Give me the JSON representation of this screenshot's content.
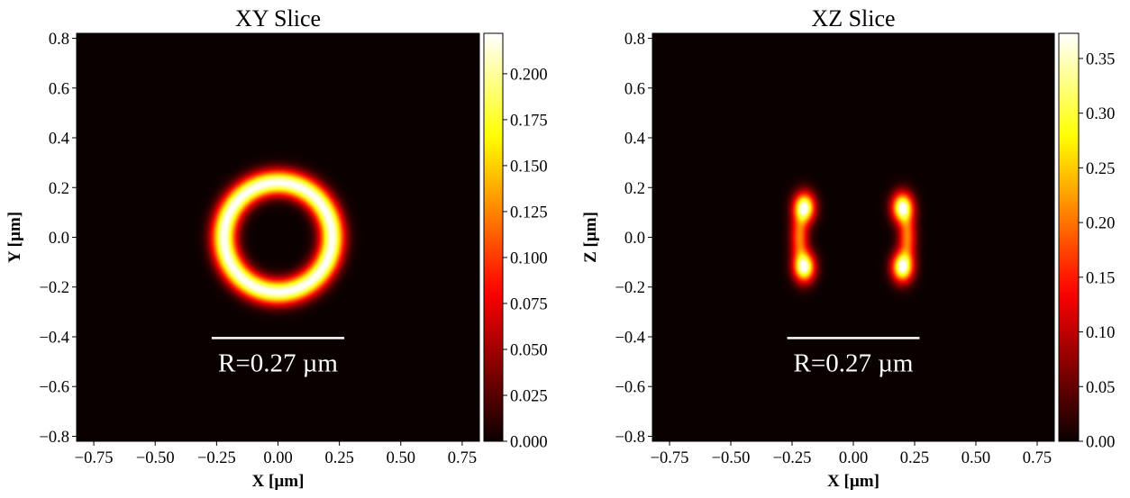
{
  "chart_data": [
    {
      "type": "heatmap",
      "title": "XY Slice",
      "xlabel": "X [µm]",
      "ylabel": "Y [µm]",
      "xlim": [
        -0.82,
        0.82
      ],
      "ylim": [
        -0.82,
        0.82
      ],
      "xticks": [
        "−0.75",
        "−0.50",
        "−0.25",
        "0.00",
        "0.25",
        "0.50",
        "0.75"
      ],
      "xtick_values": [
        -0.75,
        -0.5,
        -0.25,
        0.0,
        0.25,
        0.5,
        0.75
      ],
      "yticks": [
        "−0.8",
        "−0.6",
        "−0.4",
        "−0.2",
        "0.0",
        "0.2",
        "0.4",
        "0.6",
        "0.8"
      ],
      "ytick_values": [
        -0.8,
        -0.6,
        -0.4,
        -0.2,
        0.0,
        0.2,
        0.4,
        0.6,
        0.8
      ],
      "colormap": "hot",
      "colorbar": {
        "vmin": 0.0,
        "vmax": 0.222,
        "ticks": [
          "0.000",
          "0.025",
          "0.050",
          "0.075",
          "0.100",
          "0.125",
          "0.150",
          "0.175",
          "0.200"
        ],
        "tick_values": [
          0.0,
          0.025,
          0.05,
          0.075,
          0.1,
          0.125,
          0.15,
          0.175,
          0.2
        ]
      },
      "feature": {
        "shape": "ring",
        "center": [
          0.0,
          0.0
        ],
        "ring_radius": 0.22,
        "ring_width": 0.05,
        "peak": 0.222
      },
      "scale_bar": {
        "x": [
          -0.27,
          0.27
        ],
        "y": -0.405,
        "label": "R=0.27 µm"
      }
    },
    {
      "type": "heatmap",
      "title": "XZ Slice",
      "xlabel": "X [µm]",
      "ylabel": "Z [µm]",
      "xlim": [
        -0.82,
        0.82
      ],
      "ylim": [
        -0.82,
        0.82
      ],
      "xticks": [
        "−0.75",
        "−0.50",
        "−0.25",
        "0.00",
        "0.25",
        "0.50",
        "0.75"
      ],
      "xtick_values": [
        -0.75,
        -0.5,
        -0.25,
        0.0,
        0.25,
        0.5,
        0.75
      ],
      "yticks": [
        "−0.8",
        "−0.6",
        "−0.4",
        "−0.2",
        "0.0",
        "0.2",
        "0.4",
        "0.6",
        "0.8"
      ],
      "ytick_values": [
        -0.8,
        -0.6,
        -0.4,
        -0.2,
        0.0,
        0.2,
        0.4,
        0.6,
        0.8
      ],
      "colormap": "hot",
      "colorbar": {
        "vmin": 0.0,
        "vmax": 0.373,
        "ticks": [
          "0.00",
          "0.05",
          "0.10",
          "0.15",
          "0.20",
          "0.25",
          "0.30",
          "0.35"
        ],
        "tick_values": [
          0.0,
          0.05,
          0.1,
          0.15,
          0.2,
          0.25,
          0.3,
          0.35
        ]
      },
      "feature": {
        "shape": "two-crescents",
        "lobe_x": [
          -0.2,
          0.2
        ],
        "lobe_z": [
          -0.12,
          0.12
        ],
        "peak": 0.373
      },
      "scale_bar": {
        "x": [
          -0.27,
          0.27
        ],
        "y": -0.405,
        "label": "R=0.27 µm"
      }
    }
  ]
}
